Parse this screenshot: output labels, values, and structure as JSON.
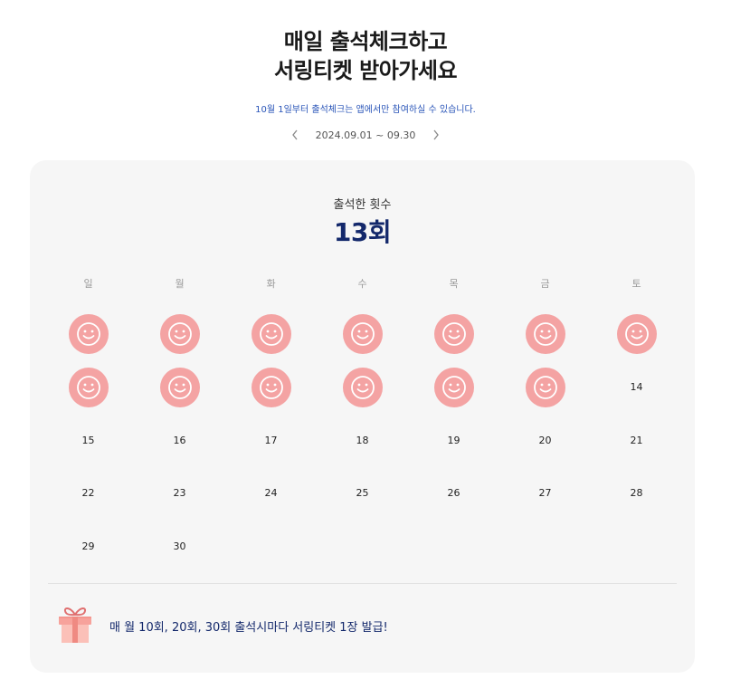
{
  "header": {
    "title_line1": "매일 출석체크하고",
    "title_line2": "서링티켓 받아가세요",
    "notice": "10월 1일부터 출석체크는 앱에서만 참여하실 수 있습니다.",
    "period": "2024.09.01 ~ 09.30",
    "prev_icon": "chevron-left-icon",
    "next_icon": "chevron-right-icon"
  },
  "attendance": {
    "count_label": "출석한 횟수",
    "count_value": "13회",
    "stamp_icon": "smiley-icon",
    "stamp_color": "#f4a3a3",
    "accent_color": "#13286b"
  },
  "calendar": {
    "weekdays": [
      "일",
      "월",
      "화",
      "수",
      "목",
      "금",
      "토"
    ],
    "weeks": [
      [
        {
          "stamp": true
        },
        {
          "stamp": true
        },
        {
          "stamp": true
        },
        {
          "stamp": true
        },
        {
          "stamp": true
        },
        {
          "stamp": true
        },
        {
          "stamp": true
        }
      ],
      [
        {
          "stamp": true
        },
        {
          "stamp": true
        },
        {
          "stamp": true
        },
        {
          "stamp": true
        },
        {
          "stamp": true
        },
        {
          "stamp": true
        },
        {
          "day": "14"
        }
      ],
      [
        {
          "day": "15"
        },
        {
          "day": "16"
        },
        {
          "day": "17"
        },
        {
          "day": "18"
        },
        {
          "day": "19"
        },
        {
          "day": "20"
        },
        {
          "day": "21"
        }
      ],
      [
        {
          "day": "22"
        },
        {
          "day": "23"
        },
        {
          "day": "24"
        },
        {
          "day": "25"
        },
        {
          "day": "26"
        },
        {
          "day": "27"
        },
        {
          "day": "28"
        }
      ],
      [
        {
          "day": "29"
        },
        {
          "day": "30"
        },
        {
          "day": ""
        },
        {
          "day": ""
        },
        {
          "day": ""
        },
        {
          "day": ""
        },
        {
          "day": ""
        }
      ]
    ]
  },
  "reward": {
    "icon": "gift-box-icon",
    "text": "매 월 10회, 20회, 30회 출석시마다 서링티켓 1장 발급!"
  }
}
